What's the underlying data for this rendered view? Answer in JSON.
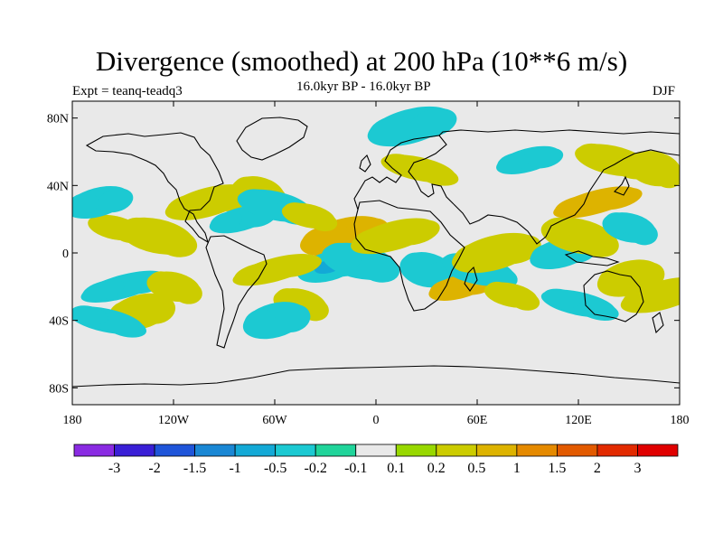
{
  "title": "Divergence (smoothed) at 200 hPa (10**6 m/s)",
  "experiment_label": "Expt = teanq-teadq3",
  "period_label": "16.0kyr BP - 16.0kyr BP",
  "season_label": "DJF",
  "lat_ticks": [
    "80N",
    "40N",
    "0",
    "40S",
    "80S"
  ],
  "lon_ticks": [
    "180",
    "120W",
    "60W",
    "0",
    "60E",
    "120E",
    "180"
  ],
  "colorbar": {
    "labels": [
      "-3",
      "-2",
      "-1.5",
      "-1",
      "-0.5",
      "-0.2",
      "-0.1",
      "0.1",
      "0.2",
      "0.5",
      "1",
      "1.5",
      "2",
      "3"
    ],
    "colors": [
      "#8a2be2",
      "#3a1fd6",
      "#1f55d9",
      "#1a87d4",
      "#13a9d6",
      "#1cc9d2",
      "#20d49a",
      "#e9e9e9",
      "#98d800",
      "#cccc00",
      "#ddb300",
      "#e58a00",
      "#e25a00",
      "#e22a00",
      "#e00000"
    ]
  },
  "chart_data": {
    "type": "heatmap",
    "title": "Divergence (smoothed) at 200 hPa (10**6 m/s)",
    "variable": "Divergence (smoothed) at 200 hPa",
    "units": "10**6 m/s",
    "experiment": "teanq-teadq3",
    "period": "16.0kyr BP - 16.0kyr BP",
    "season": "DJF",
    "x_range": [
      -180,
      180
    ],
    "y_range": [
      -90,
      90
    ],
    "contour_levels": [
      -3,
      -2,
      -1.5,
      -1,
      -0.5,
      -0.2,
      -0.1,
      0.1,
      0.2,
      0.5,
      1,
      1.5,
      2,
      3
    ],
    "anomaly_regions": [
      {
        "lon": -155,
        "lat": 15,
        "value": 0.3
      },
      {
        "lon": -165,
        "lat": 30,
        "value": -0.3
      },
      {
        "lon": -130,
        "lat": 10,
        "value": 0.3
      },
      {
        "lon": -150,
        "lat": -20,
        "value": -0.3
      },
      {
        "lon": -120,
        "lat": -20,
        "value": 0.3
      },
      {
        "lon": -140,
        "lat": -35,
        "value": 0.3
      },
      {
        "lon": -160,
        "lat": -40,
        "value": -0.3
      },
      {
        "lon": -100,
        "lat": 30,
        "value": 0.3
      },
      {
        "lon": -70,
        "lat": 35,
        "value": 0.3
      },
      {
        "lon": -80,
        "lat": 20,
        "value": -0.3
      },
      {
        "lon": -60,
        "lat": 28,
        "value": -0.3
      },
      {
        "lon": -20,
        "lat": 10,
        "value": 0.5
      },
      {
        "lon": -40,
        "lat": 22,
        "value": 0.3
      },
      {
        "lon": -28,
        "lat": -8,
        "value": -0.5
      },
      {
        "lon": -10,
        "lat": -5,
        "value": -0.3
      },
      {
        "lon": -60,
        "lat": -10,
        "value": 0.3
      },
      {
        "lon": -45,
        "lat": -30,
        "value": 0.3
      },
      {
        "lon": -60,
        "lat": -40,
        "value": -0.3
      },
      {
        "lon": 25,
        "lat": 50,
        "value": 0.3
      },
      {
        "lon": 10,
        "lat": 10,
        "value": 0.3
      },
      {
        "lon": 30,
        "lat": -10,
        "value": -0.3
      },
      {
        "lon": 50,
        "lat": -20,
        "value": 0.5
      },
      {
        "lon": 60,
        "lat": -10,
        "value": -0.3
      },
      {
        "lon": 70,
        "lat": 0,
        "value": 0.3
      },
      {
        "lon": 80,
        "lat": -25,
        "value": 0.3
      },
      {
        "lon": 110,
        "lat": 0,
        "value": -0.3
      },
      {
        "lon": 120,
        "lat": 10,
        "value": 0.3
      },
      {
        "lon": 130,
        "lat": 30,
        "value": 0.5
      },
      {
        "lon": 150,
        "lat": 15,
        "value": -0.3
      },
      {
        "lon": 150,
        "lat": -15,
        "value": 0.3
      },
      {
        "lon": 120,
        "lat": -30,
        "value": -0.3
      },
      {
        "lon": 170,
        "lat": -25,
        "value": 0.3
      },
      {
        "lon": 165,
        "lat": 50,
        "value": 0.3
      },
      {
        "lon": 90,
        "lat": 55,
        "value": -0.3
      },
      {
        "lon": 140,
        "lat": 55,
        "value": 0.3
      },
      {
        "lon": 20,
        "lat": 75,
        "value": -0.3
      }
    ]
  }
}
